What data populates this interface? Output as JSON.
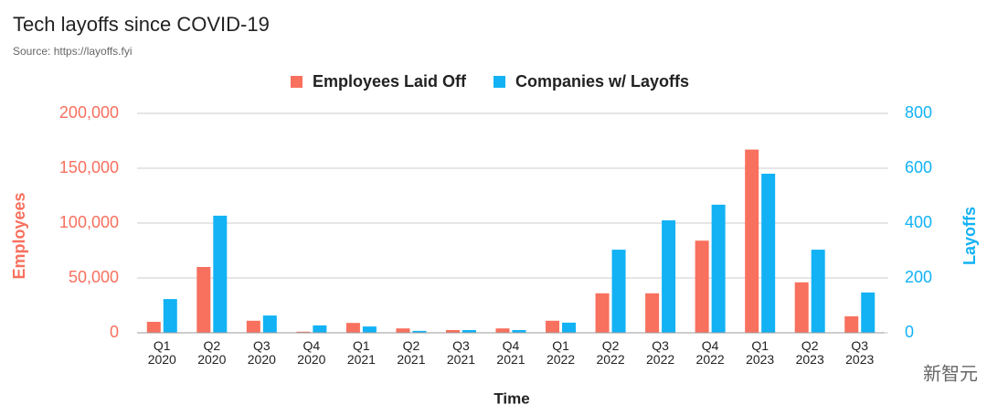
{
  "chart_data": {
    "type": "bar",
    "title": "Tech layoffs since COVID-19",
    "subtitle": "Source: https://layoffs.fyi",
    "x_label": "Time",
    "y_label": "Employees",
    "y2_label": "Layoffs",
    "watermark": "新智元",
    "categories": [
      "Q1\n2020",
      "Q2\n2020",
      "Q3\n2020",
      "Q4\n2020",
      "Q1\n2021",
      "Q2\n2021",
      "Q3\n2021",
      "Q4\n2021",
      "Q1\n2022",
      "Q2\n2022",
      "Q3\n2022",
      "Q4\n2022",
      "Q1\n2023",
      "Q2\n2023",
      "Q3\n2023"
    ],
    "series": [
      {
        "name": "Employees Laid Off",
        "color": "#f8705e",
        "values": [
          10000,
          60000,
          11000,
          1000,
          9000,
          4000,
          2500,
          4000,
          11000,
          36000,
          36000,
          84000,
          167000,
          46000,
          15000
        ]
      },
      {
        "name": "Companies w/ Layoffs",
        "color": "#12b2f5",
        "axis": "y2",
        "values": [
          123,
          427,
          63,
          27,
          23,
          7,
          10,
          10,
          37,
          303,
          410,
          467,
          580,
          303,
          147
        ]
      }
    ],
    "ylim": [
      0,
      200000
    ],
    "yticks": [
      0,
      {
        "value": 50000,
        "label": "50,000"
      },
      {
        "value": 100000,
        "label": "100,000"
      },
      {
        "value": 150000,
        "label": "150,000"
      },
      {
        "value": 200000,
        "label": "200,000"
      }
    ],
    "y2lim": [
      0,
      800
    ],
    "y2ticks": [
      0,
      200,
      400,
      600,
      800
    ],
    "grid": true,
    "legend": "top"
  }
}
